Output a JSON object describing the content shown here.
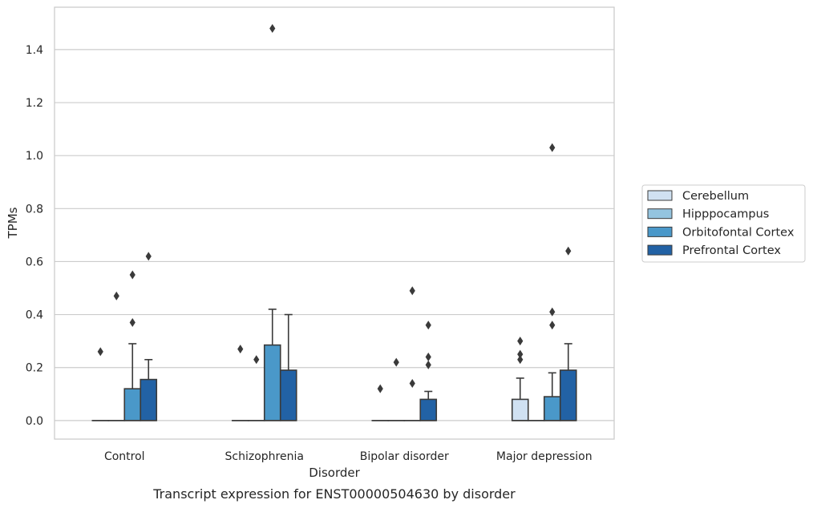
{
  "chart_data": {
    "type": "box",
    "xlabel": "Disorder",
    "ylabel": "TPMs",
    "caption": "Transcript expression for ENST00000504630 by disorder",
    "categories": [
      "Control",
      "Schizophrenia",
      "Bipolar disorder",
      "Major depression"
    ],
    "ylim": [
      -0.07,
      1.56
    ],
    "yticks": [
      0.0,
      0.2,
      0.4,
      0.6,
      0.8,
      1.0,
      1.2,
      1.4
    ],
    "ytick_labels": [
      "0.0",
      "0.2",
      "0.4",
      "0.6",
      "0.8",
      "1.0",
      "1.2",
      "1.4"
    ],
    "grid": "horizontal",
    "legend_position": "right",
    "series": [
      {
        "name": "Cerebellum",
        "color": "#d0e1f2",
        "boxes": [
          {
            "q1": 0.0,
            "median": 0.0,
            "q3": 0.0,
            "whisker_low": 0.0,
            "whisker_high": 0.0,
            "outliers": [
              0.26
            ]
          },
          {
            "q1": 0.0,
            "median": 0.0,
            "q3": 0.0,
            "whisker_low": 0.0,
            "whisker_high": 0.0,
            "outliers": [
              0.27
            ]
          },
          {
            "q1": 0.0,
            "median": 0.0,
            "q3": 0.0,
            "whisker_low": 0.0,
            "whisker_high": 0.0,
            "outliers": [
              0.12
            ]
          },
          {
            "q1": 0.0,
            "median": 0.0,
            "q3": 0.08,
            "whisker_low": 0.0,
            "whisker_high": 0.16,
            "outliers": [
              0.23,
              0.25,
              0.3
            ]
          }
        ]
      },
      {
        "name": "Hipppocampus",
        "color": "#94c4df",
        "boxes": [
          {
            "q1": 0.0,
            "median": 0.0,
            "q3": 0.0,
            "whisker_low": 0.0,
            "whisker_high": 0.0,
            "outliers": [
              0.47
            ]
          },
          {
            "q1": 0.0,
            "median": 0.0,
            "q3": 0.0,
            "whisker_low": 0.0,
            "whisker_high": 0.0,
            "outliers": [
              0.23
            ]
          },
          {
            "q1": 0.0,
            "median": 0.0,
            "q3": 0.0,
            "whisker_low": 0.0,
            "whisker_high": 0.0,
            "outliers": [
              0.22
            ]
          },
          {
            "q1": 0.0,
            "median": 0.0,
            "q3": 0.0,
            "whisker_low": 0.0,
            "whisker_high": 0.0,
            "outliers": []
          }
        ]
      },
      {
        "name": "Orbitofontal Cortex",
        "color": "#4a98c9",
        "boxes": [
          {
            "q1": 0.0,
            "median": 0.0,
            "q3": 0.12,
            "whisker_low": 0.0,
            "whisker_high": 0.29,
            "outliers": [
              0.37,
              0.55
            ]
          },
          {
            "q1": 0.0,
            "median": 0.0,
            "q3": 0.285,
            "whisker_low": 0.0,
            "whisker_high": 0.42,
            "outliers": [
              1.48
            ]
          },
          {
            "q1": 0.0,
            "median": 0.0,
            "q3": 0.0,
            "whisker_low": 0.0,
            "whisker_high": 0.0,
            "outliers": [
              0.14,
              0.49
            ]
          },
          {
            "q1": 0.0,
            "median": 0.0,
            "q3": 0.09,
            "whisker_low": 0.0,
            "whisker_high": 0.18,
            "outliers": [
              0.36,
              0.41,
              1.03
            ]
          }
        ]
      },
      {
        "name": "Prefrontal Cortex",
        "color": "#2262a5",
        "boxes": [
          {
            "q1": 0.0,
            "median": 0.0,
            "q3": 0.155,
            "whisker_low": 0.0,
            "whisker_high": 0.23,
            "outliers": [
              0.62
            ]
          },
          {
            "q1": 0.0,
            "median": 0.0,
            "q3": 0.19,
            "whisker_low": 0.0,
            "whisker_high": 0.4,
            "outliers": []
          },
          {
            "q1": 0.0,
            "median": 0.0,
            "q3": 0.08,
            "whisker_low": 0.0,
            "whisker_high": 0.11,
            "outliers": [
              0.21,
              0.24,
              0.36
            ]
          },
          {
            "q1": 0.0,
            "median": 0.0,
            "q3": 0.19,
            "whisker_low": 0.0,
            "whisker_high": 0.29,
            "outliers": [
              0.64
            ]
          }
        ]
      }
    ]
  }
}
